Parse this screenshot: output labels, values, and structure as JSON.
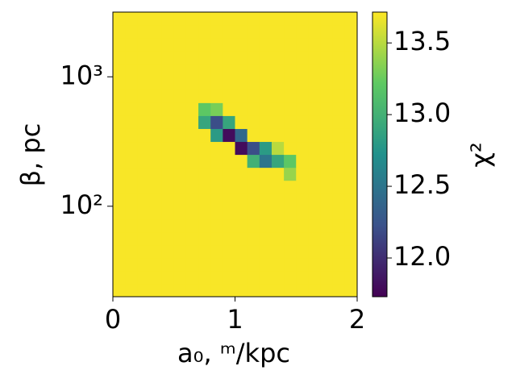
{
  "chart_data": {
    "type": "heatmap",
    "xlabel": "a₀, ᵐ/kpc",
    "ylabel": "β, pc",
    "colorbar_label": "χ²",
    "xlim": [
      0,
      2
    ],
    "xticks": [
      0,
      1,
      2
    ],
    "ylim": [
      20,
      3162
    ],
    "yscale": "log",
    "yticks": [
      {
        "value": 100,
        "label": "10²"
      },
      {
        "value": 1000,
        "label": "10³"
      }
    ],
    "zlim": [
      11.73,
      13.715
    ],
    "zticks": [
      {
        "value": 12,
        "label": "12.0"
      },
      {
        "value": 12.5,
        "label": "12.5"
      },
      {
        "value": 13,
        "label": "13.0"
      },
      {
        "value": 13.5,
        "label": "13.5"
      }
    ],
    "colormap": "viridis",
    "xbins": [
      0,
      0.1,
      0.2,
      0.3,
      0.4,
      0.5,
      0.6,
      0.7,
      0.8,
      0.9,
      1.0,
      1.1,
      1.2,
      1.3,
      1.4,
      1.5,
      1.6,
      1.7,
      1.8,
      1.9,
      2.0
    ],
    "ybins": [
      20,
      25.1,
      31.6,
      39.8,
      50.1,
      63.1,
      79.4,
      100,
      125.9,
      158.5,
      199.5,
      251.2,
      316.2,
      398.1,
      501.2,
      631,
      794.3,
      1000,
      1258.9,
      1584.9,
      1995.3,
      2511.9,
      3162
    ],
    "z": [
      [
        13.7,
        13.7,
        13.7,
        13.7,
        13.7,
        13.7,
        13.7,
        13.7,
        13.7,
        13.7,
        13.7,
        13.7,
        13.7,
        13.7,
        13.7,
        13.7,
        13.7,
        13.7,
        13.7,
        13.7
      ],
      [
        13.7,
        13.7,
        13.7,
        13.7,
        13.7,
        13.7,
        13.7,
        13.7,
        13.7,
        13.7,
        13.7,
        13.7,
        13.7,
        13.7,
        13.7,
        13.7,
        13.7,
        13.7,
        13.7,
        13.7
      ],
      [
        13.7,
        13.7,
        13.7,
        13.7,
        13.7,
        13.7,
        13.7,
        13.7,
        13.7,
        13.7,
        13.7,
        13.7,
        13.7,
        13.7,
        13.7,
        13.7,
        13.7,
        13.7,
        13.7,
        13.7
      ],
      [
        13.7,
        13.7,
        13.7,
        13.7,
        13.7,
        13.7,
        13.7,
        13.7,
        13.7,
        13.7,
        13.7,
        13.7,
        13.7,
        13.7,
        13.7,
        13.7,
        13.7,
        13.7,
        13.7,
        13.7
      ],
      [
        13.7,
        13.7,
        13.7,
        13.7,
        13.7,
        13.7,
        13.7,
        13.7,
        13.7,
        13.7,
        13.7,
        13.7,
        13.7,
        13.7,
        13.7,
        13.7,
        13.7,
        13.7,
        13.7,
        13.7
      ],
      [
        13.7,
        13.7,
        13.7,
        13.7,
        13.7,
        13.7,
        13.7,
        13.7,
        13.7,
        13.7,
        13.7,
        13.7,
        13.7,
        13.7,
        13.7,
        13.7,
        13.7,
        13.7,
        13.7,
        13.7
      ],
      [
        13.7,
        13.7,
        13.7,
        13.7,
        13.7,
        13.7,
        13.7,
        13.7,
        13.7,
        13.7,
        13.7,
        13.7,
        13.7,
        13.7,
        13.7,
        13.7,
        13.7,
        13.7,
        13.7,
        13.7
      ],
      [
        13.7,
        13.7,
        13.7,
        13.7,
        13.7,
        13.7,
        13.7,
        13.7,
        13.7,
        13.7,
        13.7,
        13.7,
        13.7,
        13.7,
        13.7,
        13.7,
        13.7,
        13.7,
        13.7,
        13.7
      ],
      [
        13.7,
        13.7,
        13.7,
        13.7,
        13.7,
        13.7,
        13.7,
        13.7,
        13.7,
        13.7,
        13.7,
        13.7,
        13.7,
        13.7,
        13.7,
        13.7,
        13.7,
        13.7,
        13.7,
        13.7
      ],
      [
        13.7,
        13.7,
        13.7,
        13.7,
        13.7,
        13.7,
        13.7,
        13.7,
        13.7,
        13.7,
        13.7,
        13.7,
        13.7,
        13.7,
        13.4,
        13.7,
        13.7,
        13.7,
        13.7,
        13.7
      ],
      [
        13.7,
        13.7,
        13.7,
        13.7,
        13.7,
        13.7,
        13.7,
        13.7,
        13.7,
        13.7,
        13.7,
        13.0,
        12.5,
        12.9,
        13.2,
        13.7,
        13.7,
        13.7,
        13.7,
        13.7
      ],
      [
        13.7,
        13.7,
        13.7,
        13.7,
        13.7,
        13.7,
        13.7,
        13.7,
        13.7,
        13.7,
        11.8,
        12.2,
        12.8,
        13.5,
        13.7,
        13.7,
        13.7,
        13.7,
        13.7,
        13.7
      ],
      [
        13.7,
        13.7,
        13.7,
        13.7,
        13.7,
        13.7,
        13.7,
        13.7,
        12.8,
        11.8,
        12.4,
        13.7,
        13.7,
        13.7,
        13.7,
        13.7,
        13.7,
        13.7,
        13.7,
        13.7
      ],
      [
        13.7,
        13.7,
        13.7,
        13.7,
        13.7,
        13.7,
        13.7,
        12.9,
        12.2,
        12.9,
        13.7,
        13.7,
        13.7,
        13.7,
        13.7,
        13.7,
        13.7,
        13.7,
        13.7,
        13.7
      ],
      [
        13.7,
        13.7,
        13.7,
        13.7,
        13.7,
        13.7,
        13.7,
        13.2,
        13.3,
        13.7,
        13.7,
        13.7,
        13.7,
        13.7,
        13.7,
        13.7,
        13.7,
        13.7,
        13.7,
        13.7
      ],
      [
        13.7,
        13.7,
        13.7,
        13.7,
        13.7,
        13.7,
        13.7,
        13.7,
        13.7,
        13.7,
        13.7,
        13.7,
        13.7,
        13.7,
        13.7,
        13.7,
        13.7,
        13.7,
        13.7,
        13.7
      ],
      [
        13.7,
        13.7,
        13.7,
        13.7,
        13.7,
        13.7,
        13.7,
        13.7,
        13.7,
        13.7,
        13.7,
        13.7,
        13.7,
        13.7,
        13.7,
        13.7,
        13.7,
        13.7,
        13.7,
        13.7
      ],
      [
        13.7,
        13.7,
        13.7,
        13.7,
        13.7,
        13.7,
        13.7,
        13.7,
        13.7,
        13.7,
        13.7,
        13.7,
        13.7,
        13.7,
        13.7,
        13.7,
        13.7,
        13.7,
        13.7,
        13.7
      ],
      [
        13.7,
        13.7,
        13.7,
        13.7,
        13.7,
        13.7,
        13.7,
        13.7,
        13.7,
        13.7,
        13.7,
        13.7,
        13.7,
        13.7,
        13.7,
        13.7,
        13.7,
        13.7,
        13.7,
        13.7
      ],
      [
        13.7,
        13.7,
        13.7,
        13.7,
        13.7,
        13.7,
        13.7,
        13.7,
        13.7,
        13.7,
        13.7,
        13.7,
        13.7,
        13.7,
        13.7,
        13.7,
        13.7,
        13.7,
        13.7,
        13.7
      ],
      [
        13.7,
        13.7,
        13.7,
        13.7,
        13.7,
        13.7,
        13.7,
        13.7,
        13.7,
        13.7,
        13.7,
        13.7,
        13.7,
        13.7,
        13.7,
        13.7,
        13.7,
        13.7,
        13.7,
        13.7
      ],
      [
        13.7,
        13.7,
        13.7,
        13.7,
        13.7,
        13.7,
        13.7,
        13.7,
        13.7,
        13.7,
        13.7,
        13.7,
        13.7,
        13.7,
        13.7,
        13.7,
        13.7,
        13.7,
        13.7,
        13.7
      ]
    ]
  }
}
